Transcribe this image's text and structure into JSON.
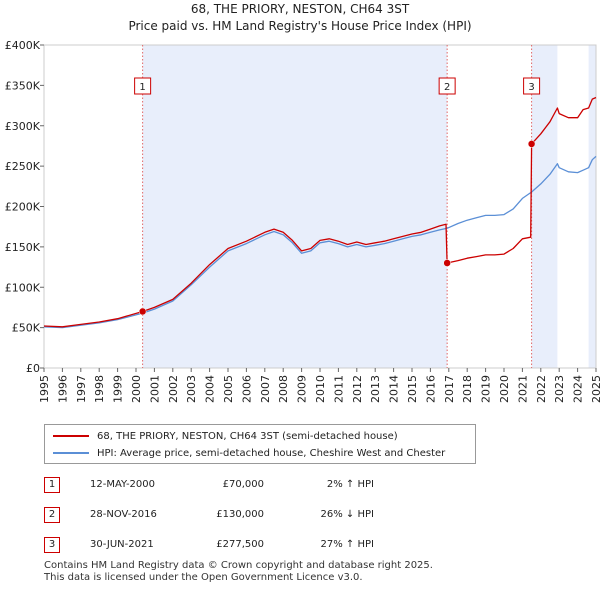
{
  "header": {
    "title_line1": "68, THE PRIORY, NESTON, CH64 3ST",
    "title_line2": "Price paid vs. HM Land Registry's House Price Index (HPI)"
  },
  "colors": {
    "property": "#cc0000",
    "hpi": "#5b8fd6",
    "shade": "#e8eefb",
    "marker_line": "#e06666"
  },
  "legend": {
    "property_label": "68, THE PRIORY, NESTON, CH64 3ST (semi-detached house)",
    "hpi_label": "HPI: Average price, semi-detached house, Cheshire West and Chester"
  },
  "transactions": [
    {
      "num": "1",
      "date": "12-MAY-2000",
      "price": "£70,000",
      "hpi": "2% ↑ HPI"
    },
    {
      "num": "2",
      "date": "28-NOV-2016",
      "price": "£130,000",
      "hpi": "26% ↓ HPI"
    },
    {
      "num": "3",
      "date": "30-JUN-2021",
      "price": "£277,500",
      "hpi": "27% ↑ HPI"
    }
  ],
  "footer": {
    "line1": "Contains HM Land Registry data © Crown copyright and database right 2025.",
    "line2": "This data is licensed under the Open Government Licence v3.0."
  },
  "chart_data": {
    "type": "line",
    "title": "68, THE PRIORY, NESTON, CH64 3ST",
    "subtitle": "Price paid vs. HM Land Registry's House Price Index (HPI)",
    "xlabel": "",
    "ylabel": "",
    "xlim": [
      1995,
      2025
    ],
    "ylim": [
      0,
      400000
    ],
    "grid": false,
    "legend_position": "bottom",
    "x_ticks": [
      1995,
      1996,
      1997,
      1998,
      1999,
      2000,
      2001,
      2002,
      2003,
      2004,
      2005,
      2006,
      2007,
      2008,
      2009,
      2010,
      2011,
      2012,
      2013,
      2014,
      2015,
      2016,
      2017,
      2018,
      2019,
      2020,
      2021,
      2022,
      2023,
      2024,
      2025
    ],
    "y_ticks": [
      {
        "value": 0,
        "label": "£0"
      },
      {
        "value": 50000,
        "label": "£50K"
      },
      {
        "value": 100000,
        "label": "£100K"
      },
      {
        "value": 150000,
        "label": "£150K"
      },
      {
        "value": 200000,
        "label": "£200K"
      },
      {
        "value": 250000,
        "label": "£250K"
      },
      {
        "value": 300000,
        "label": "£300K"
      },
      {
        "value": 350000,
        "label": "£350K"
      },
      {
        "value": 400000,
        "label": "£400K"
      }
    ],
    "shaded_periods": [
      {
        "start": 2000.36,
        "end": 2016.91
      },
      {
        "start": 2021.5,
        "end": 2022.9
      },
      {
        "start": 2024.6,
        "end": 2025.0
      }
    ],
    "markers": [
      {
        "label": "1",
        "x": 2000.36,
        "y": 70000
      },
      {
        "label": "2",
        "x": 2016.91,
        "y": 130000
      },
      {
        "label": "3",
        "x": 2021.5,
        "y": 277500
      }
    ],
    "series": [
      {
        "name": "68, THE PRIORY, NESTON, CH64 3ST (semi-detached house)",
        "color": "#cc0000",
        "points": [
          [
            1995,
            52000
          ],
          [
            1996,
            51000
          ],
          [
            1997,
            54000
          ],
          [
            1998,
            57000
          ],
          [
            1999,
            61000
          ],
          [
            2000.36,
            70000
          ],
          [
            2001,
            75000
          ],
          [
            2002,
            85000
          ],
          [
            2003,
            105000
          ],
          [
            2004,
            128000
          ],
          [
            2005,
            148000
          ],
          [
            2006,
            157000
          ],
          [
            2007,
            168000
          ],
          [
            2007.5,
            172000
          ],
          [
            2008,
            168000
          ],
          [
            2008.5,
            158000
          ],
          [
            2009,
            145000
          ],
          [
            2009.5,
            148000
          ],
          [
            2010,
            158000
          ],
          [
            2010.5,
            160000
          ],
          [
            2011,
            157000
          ],
          [
            2011.5,
            153000
          ],
          [
            2012,
            156000
          ],
          [
            2012.5,
            153000
          ],
          [
            2013,
            155000
          ],
          [
            2013.5,
            157000
          ],
          [
            2014,
            160000
          ],
          [
            2014.5,
            163000
          ],
          [
            2015,
            166000
          ],
          [
            2015.5,
            168000
          ],
          [
            2016,
            172000
          ],
          [
            2016.5,
            176000
          ],
          [
            2016.85,
            178000
          ],
          [
            2016.91,
            130000
          ],
          [
            2017.5,
            133000
          ],
          [
            2018,
            136000
          ],
          [
            2018.5,
            138000
          ],
          [
            2019,
            140000
          ],
          [
            2019.5,
            140000
          ],
          [
            2020,
            141000
          ],
          [
            2020.5,
            148000
          ],
          [
            2021,
            160000
          ],
          [
            2021.45,
            162000
          ],
          [
            2021.5,
            277500
          ],
          [
            2022,
            290000
          ],
          [
            2022.5,
            305000
          ],
          [
            2022.9,
            322000
          ],
          [
            2023,
            315000
          ],
          [
            2023.5,
            310000
          ],
          [
            2024,
            310000
          ],
          [
            2024.3,
            320000
          ],
          [
            2024.6,
            322000
          ],
          [
            2024.8,
            333000
          ],
          [
            2025,
            335000
          ]
        ]
      },
      {
        "name": "HPI: Average price, semi-detached house, Cheshire West and Chester",
        "color": "#5b8fd6",
        "points": [
          [
            1995,
            51000
          ],
          [
            1996,
            50000
          ],
          [
            1997,
            53000
          ],
          [
            1998,
            56000
          ],
          [
            1999,
            60000
          ],
          [
            2000.36,
            68000
          ],
          [
            2001,
            73000
          ],
          [
            2002,
            83000
          ],
          [
            2003,
            103000
          ],
          [
            2004,
            125000
          ],
          [
            2005,
            145000
          ],
          [
            2006,
            154000
          ],
          [
            2007,
            165000
          ],
          [
            2007.5,
            169000
          ],
          [
            2008,
            165000
          ],
          [
            2008.5,
            155000
          ],
          [
            2009,
            142000
          ],
          [
            2009.5,
            145000
          ],
          [
            2010,
            155000
          ],
          [
            2010.5,
            157000
          ],
          [
            2011,
            154000
          ],
          [
            2011.5,
            150000
          ],
          [
            2012,
            153000
          ],
          [
            2012.5,
            150000
          ],
          [
            2013,
            152000
          ],
          [
            2013.5,
            154000
          ],
          [
            2014,
            157000
          ],
          [
            2014.5,
            160000
          ],
          [
            2015,
            163000
          ],
          [
            2015.5,
            165000
          ],
          [
            2016,
            168000
          ],
          [
            2016.5,
            171000
          ],
          [
            2016.91,
            173000
          ],
          [
            2017.5,
            179000
          ],
          [
            2018,
            183000
          ],
          [
            2018.5,
            186000
          ],
          [
            2019,
            189000
          ],
          [
            2019.5,
            189000
          ],
          [
            2020,
            190000
          ],
          [
            2020.5,
            197000
          ],
          [
            2021,
            210000
          ],
          [
            2021.5,
            218000
          ],
          [
            2022,
            228000
          ],
          [
            2022.5,
            240000
          ],
          [
            2022.9,
            253000
          ],
          [
            2023,
            248000
          ],
          [
            2023.5,
            243000
          ],
          [
            2024,
            242000
          ],
          [
            2024.3,
            245000
          ],
          [
            2024.6,
            248000
          ],
          [
            2024.8,
            258000
          ],
          [
            2025,
            262000
          ]
        ]
      }
    ]
  }
}
